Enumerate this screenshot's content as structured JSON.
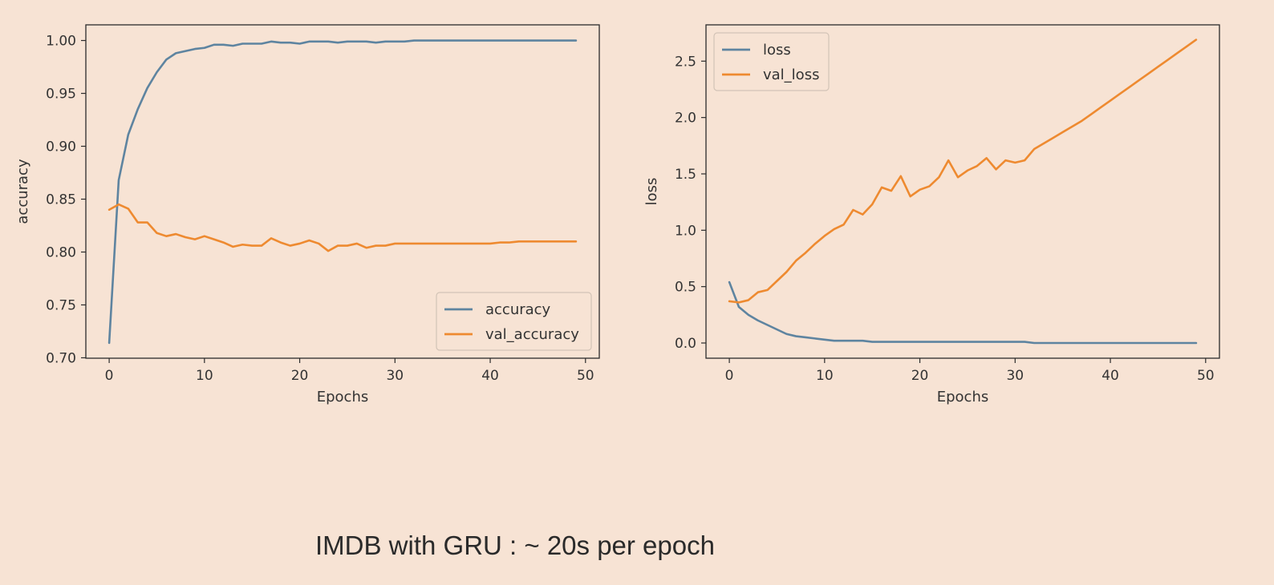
{
  "caption": "IMDB with GRU : ~ 20s per epoch",
  "chart_data": [
    {
      "type": "line",
      "title": "",
      "xlabel": "Epochs",
      "ylabel": "accuracy",
      "xlim": [
        -2.45,
        51.45
      ],
      "ylim": [
        0.6996,
        1.0148
      ],
      "xticks": [
        0,
        10,
        20,
        30,
        40,
        50
      ],
      "yticks": [
        0.7,
        0.75,
        0.8,
        0.85,
        0.9,
        0.95,
        1.0
      ],
      "ytick_decimals": 2,
      "legend": "lower-right",
      "grid": false,
      "x": [
        0,
        1,
        2,
        3,
        4,
        5,
        6,
        7,
        8,
        9,
        10,
        11,
        12,
        13,
        14,
        15,
        16,
        17,
        18,
        19,
        20,
        21,
        22,
        23,
        24,
        25,
        26,
        27,
        28,
        29,
        30,
        31,
        32,
        33,
        34,
        35,
        36,
        37,
        38,
        39,
        40,
        41,
        42,
        43,
        44,
        45,
        46,
        47,
        48,
        49
      ],
      "series": [
        {
          "name": "accuracy",
          "color": "#5e84a0",
          "values": [
            0.714,
            0.868,
            0.911,
            0.935,
            0.955,
            0.97,
            0.982,
            0.988,
            0.99,
            0.992,
            0.993,
            0.996,
            0.996,
            0.995,
            0.997,
            0.997,
            0.997,
            0.999,
            0.998,
            0.998,
            0.997,
            0.999,
            0.999,
            0.999,
            0.998,
            0.999,
            0.999,
            0.999,
            0.998,
            0.999,
            0.999,
            0.999,
            1.0,
            1.0,
            1.0,
            1.0,
            1.0,
            1.0,
            1.0,
            1.0,
            1.0,
            1.0,
            1.0,
            1.0,
            1.0,
            1.0,
            1.0,
            1.0,
            1.0,
            1.0
          ]
        },
        {
          "name": "val_accuracy",
          "color": "#ee8a30",
          "values": [
            0.84,
            0.845,
            0.841,
            0.828,
            0.828,
            0.818,
            0.815,
            0.817,
            0.814,
            0.812,
            0.815,
            0.812,
            0.809,
            0.805,
            0.807,
            0.806,
            0.806,
            0.813,
            0.809,
            0.806,
            0.808,
            0.811,
            0.808,
            0.801,
            0.806,
            0.806,
            0.808,
            0.804,
            0.806,
            0.806,
            0.808,
            0.808,
            0.808,
            0.808,
            0.808,
            0.808,
            0.808,
            0.808,
            0.808,
            0.808,
            0.808,
            0.809,
            0.809,
            0.81,
            0.81,
            0.81,
            0.81,
            0.81,
            0.81,
            0.81
          ]
        }
      ]
    },
    {
      "type": "line",
      "title": "",
      "xlabel": "Epochs",
      "ylabel": "loss",
      "xlim": [
        -2.45,
        51.45
      ],
      "ylim": [
        -0.135,
        2.822
      ],
      "xticks": [
        0,
        10,
        20,
        30,
        40,
        50
      ],
      "yticks": [
        0.0,
        0.5,
        1.0,
        1.5,
        2.0,
        2.5
      ],
      "ytick_decimals": 1,
      "legend": "upper-left",
      "grid": false,
      "x": [
        0,
        1,
        2,
        3,
        4,
        5,
        6,
        7,
        8,
        9,
        10,
        11,
        12,
        13,
        14,
        15,
        16,
        17,
        18,
        19,
        20,
        21,
        22,
        23,
        24,
        25,
        26,
        27,
        28,
        29,
        30,
        31,
        32,
        33,
        34,
        35,
        36,
        37,
        38,
        39,
        40,
        41,
        42,
        43,
        44,
        45,
        46,
        47,
        48,
        49
      ],
      "series": [
        {
          "name": "loss",
          "color": "#5e84a0",
          "values": [
            0.54,
            0.32,
            0.25,
            0.2,
            0.16,
            0.12,
            0.08,
            0.06,
            0.05,
            0.04,
            0.03,
            0.02,
            0.02,
            0.02,
            0.02,
            0.01,
            0.01,
            0.01,
            0.01,
            0.01,
            0.01,
            0.01,
            0.01,
            0.01,
            0.01,
            0.01,
            0.01,
            0.01,
            0.01,
            0.01,
            0.01,
            0.01,
            0.0,
            0.0,
            0.0,
            0.0,
            0.0,
            0.0,
            0.0,
            0.0,
            0.0,
            0.0,
            0.0,
            0.0,
            0.0,
            0.0,
            0.0,
            0.0,
            0.0,
            0.0
          ]
        },
        {
          "name": "val_loss",
          "color": "#ee8a30",
          "values": [
            0.37,
            0.36,
            0.38,
            0.45,
            0.47,
            0.55,
            0.63,
            0.73,
            0.8,
            0.88,
            0.95,
            1.01,
            1.05,
            1.18,
            1.14,
            1.23,
            1.38,
            1.35,
            1.48,
            1.3,
            1.36,
            1.39,
            1.47,
            1.62,
            1.47,
            1.53,
            1.57,
            1.64,
            1.54,
            1.62,
            1.6,
            1.62,
            1.72,
            1.77,
            1.82,
            1.87,
            1.92,
            1.97,
            2.03,
            2.09,
            2.15,
            2.21,
            2.27,
            2.33,
            2.39,
            2.45,
            2.51,
            2.57,
            2.63,
            2.69
          ]
        }
      ]
    }
  ]
}
